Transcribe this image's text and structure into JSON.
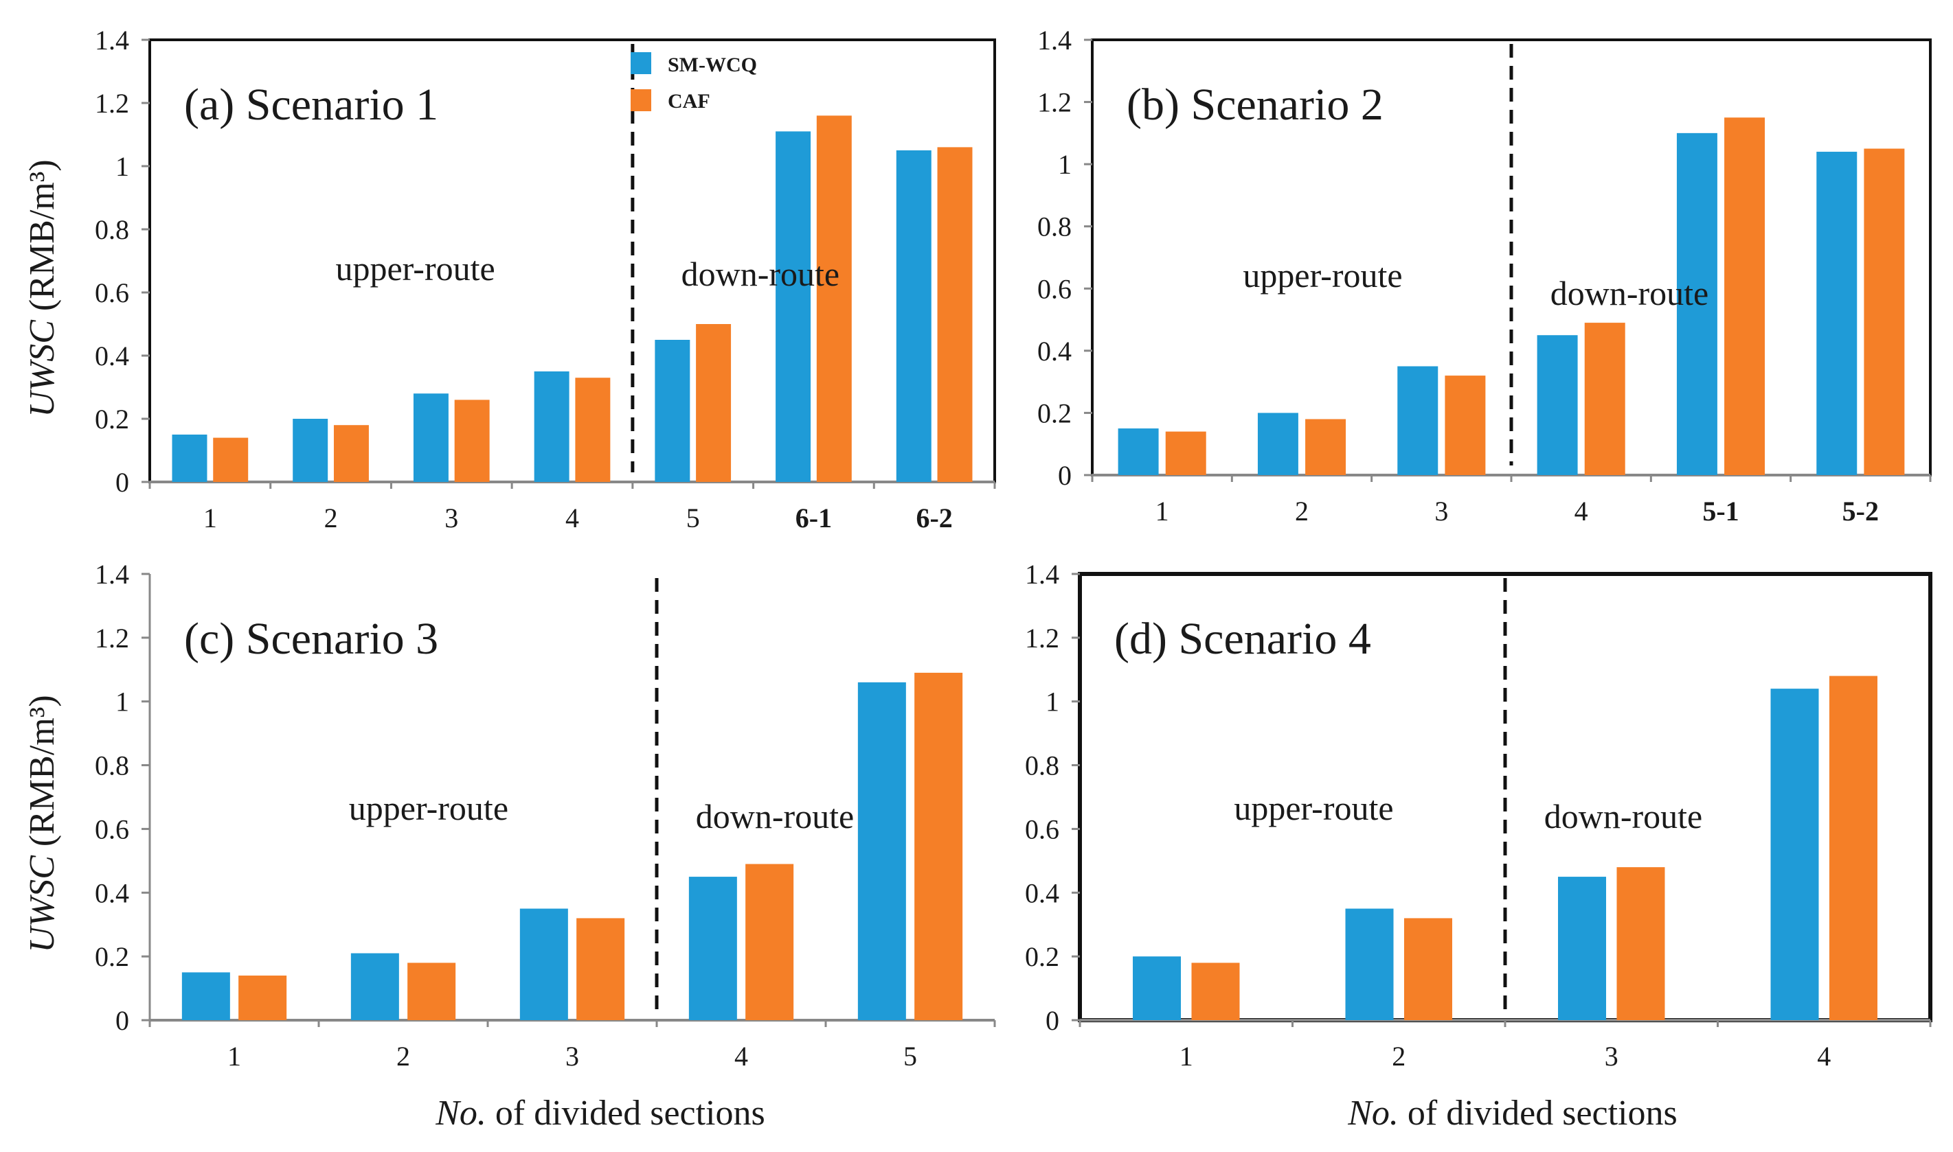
{
  "colors": {
    "sm_wcq": "#1f9bd7",
    "caf": "#f57f27",
    "axis": "#888888",
    "frame": "#111111",
    "divider": "#111111"
  },
  "legend": {
    "items": [
      {
        "key": "sm_wcq",
        "label": "SM-WCQ"
      },
      {
        "key": "caf",
        "label": "CAF"
      }
    ]
  },
  "y_axis_title": {
    "italic": "UWSC",
    "unit": "(RMB/m³)"
  },
  "x_axis_title": {
    "italic": "No.",
    "rest": " of divided sections"
  },
  "chart_data": [
    {
      "type": "bar",
      "panel": "a",
      "title": "(a) Scenario 1",
      "categories": [
        "1",
        "2",
        "3",
        "4",
        "5",
        "6-1",
        "6-2"
      ],
      "bold_categories": [
        "6-1",
        "6-2"
      ],
      "series": [
        {
          "name": "SM-WCQ",
          "values": [
            0.15,
            0.2,
            0.28,
            0.35,
            0.45,
            1.11,
            1.05
          ]
        },
        {
          "name": "CAF",
          "values": [
            0.14,
            0.18,
            0.26,
            0.33,
            0.5,
            1.16,
            1.06
          ]
        }
      ],
      "ylim": [
        0,
        1.4
      ],
      "yticks": [
        "0",
        "0.2",
        "0.4",
        "0.6",
        "0.8",
        "1",
        "1.2",
        "1.4"
      ],
      "divider_after_index": 3,
      "region_labels": {
        "upper": "upper-route",
        "down": "down-route"
      },
      "ylabel": "UWSC (RMB/m³)",
      "xlabel": ""
    },
    {
      "type": "bar",
      "panel": "b",
      "title": "(b) Scenario 2",
      "categories": [
        "1",
        "2",
        "3",
        "4",
        "5-1",
        "5-2"
      ],
      "bold_categories": [
        "5-1",
        "5-2"
      ],
      "series": [
        {
          "name": "SM-WCQ",
          "values": [
            0.15,
            0.2,
            0.35,
            0.45,
            1.1,
            1.04
          ]
        },
        {
          "name": "CAF",
          "values": [
            0.14,
            0.18,
            0.32,
            0.49,
            1.15,
            1.05
          ]
        }
      ],
      "ylim": [
        0,
        1.4
      ],
      "yticks": [
        "0",
        "0.2",
        "0.4",
        "0.6",
        "0.8",
        "1",
        "1.2",
        "1.4"
      ],
      "divider_after_index": 2,
      "region_labels": {
        "upper": "upper-route",
        "down": "down-route"
      },
      "ylabel": "",
      "xlabel": ""
    },
    {
      "type": "bar",
      "panel": "c",
      "title": "(c) Scenario 3",
      "categories": [
        "1",
        "2",
        "3",
        "4",
        "5"
      ],
      "bold_categories": [],
      "series": [
        {
          "name": "SM-WCQ",
          "values": [
            0.15,
            0.21,
            0.35,
            0.45,
            1.06
          ]
        },
        {
          "name": "CAF",
          "values": [
            0.14,
            0.18,
            0.32,
            0.49,
            1.09
          ]
        }
      ],
      "ylim": [
        0,
        1.4
      ],
      "yticks": [
        "0",
        "0.2",
        "0.4",
        "0.6",
        "0.8",
        "1",
        "1.2",
        "1.4"
      ],
      "divider_after_index": 2,
      "region_labels": {
        "upper": "upper-route",
        "down": "down-route"
      },
      "ylabel": "UWSC (RMB/m³)",
      "xlabel": "No. of divided sections"
    },
    {
      "type": "bar",
      "panel": "d",
      "title": "(d) Scenario 4",
      "categories": [
        "1",
        "2",
        "3",
        "4"
      ],
      "bold_categories": [],
      "series": [
        {
          "name": "SM-WCQ",
          "values": [
            0.2,
            0.35,
            0.45,
            1.04
          ]
        },
        {
          "name": "CAF",
          "values": [
            0.18,
            0.32,
            0.48,
            1.08
          ]
        }
      ],
      "ylim": [
        0,
        1.4
      ],
      "yticks": [
        "0",
        "0.2",
        "0.4",
        "0.6",
        "0.8",
        "1",
        "1.2",
        "1.4"
      ],
      "divider_after_index": 1,
      "region_labels": {
        "upper": "upper-route",
        "down": "down-route"
      },
      "ylabel": "",
      "xlabel": "No. of divided sections"
    }
  ]
}
